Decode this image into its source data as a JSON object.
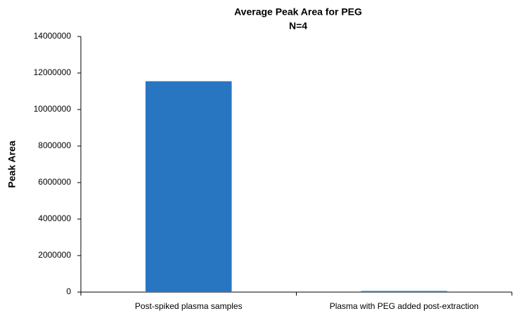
{
  "chart_data": {
    "type": "bar",
    "title": "Average Peak Area for PEG",
    "subtitle": "N=4",
    "y_label": "Peak Area",
    "categories": [
      "Post-spiked plasma samples",
      "Plasma with PEG added post-extraction"
    ],
    "values": [
      11550000,
      60000
    ],
    "color": "#2876c2",
    "ylim": [
      0,
      14000000
    ],
    "yticks": [
      0,
      2000000,
      4000000,
      6000000,
      8000000,
      10000000,
      12000000,
      14000000
    ],
    "grid": false
  }
}
